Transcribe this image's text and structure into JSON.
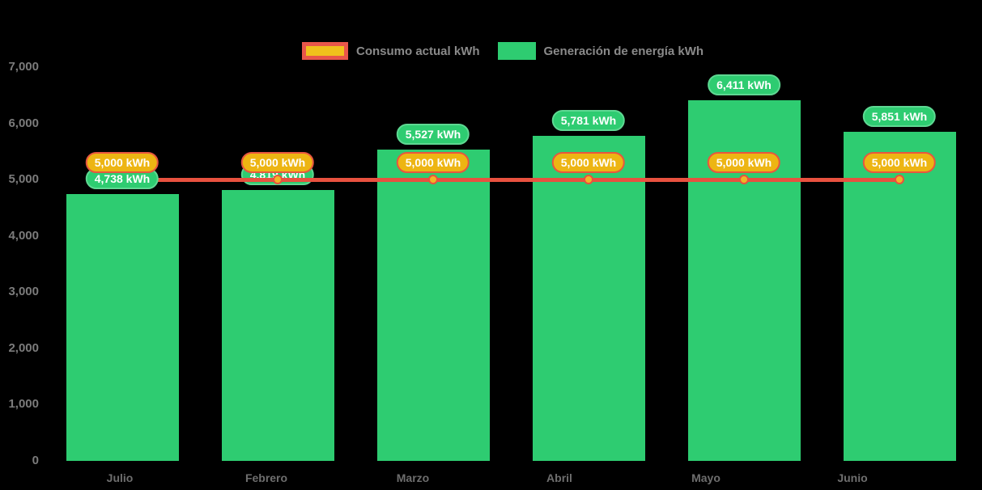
{
  "chart_data": {
    "type": "bar",
    "subtype": "bar-with-line-overlay",
    "categories": [
      "Julio",
      "Febrero",
      "Marzo",
      "Abril",
      "Mayo",
      "Junio"
    ],
    "series": [
      {
        "name": "Consumo actual kWh",
        "type": "line",
        "values": [
          5000,
          5000,
          5000,
          5000,
          5000,
          5000
        ],
        "labels": [
          "5,000 kWh",
          "5,000 kWh",
          "5,000 kWh",
          "5,000 kWh",
          "5,000 kWh",
          "5,000 kWh"
        ],
        "line_color": "#e8513f",
        "marker_color": "#f0b626",
        "label_bg": "#edb513",
        "label_border": "#e8563f"
      },
      {
        "name": "Generación de energía kWh",
        "type": "bar",
        "values": [
          4738,
          4819,
          5527,
          5781,
          6411,
          5851
        ],
        "labels": [
          "4,738 kWh",
          "4,819 kWh",
          "5,527 kWh",
          "5,781 kWh",
          "6,411 kWh",
          "5,851 kWh"
        ],
        "bar_color": "#2ecc71",
        "label_bg": "#2ecc71",
        "label_border": "#5ed892"
      }
    ],
    "title": "",
    "xlabel": "",
    "ylabel": "",
    "ylim": [
      0,
      7000
    ],
    "y_ticks": [
      "0",
      "1,000",
      "2,000",
      "3,000",
      "4,000",
      "5,000",
      "6,000",
      "7,000"
    ],
    "y_tick_step": 1000,
    "grid": false,
    "legend_position": "top",
    "background": "#000000",
    "axis_text_color": "#6e6e6e",
    "label_text_color": "#ffffff"
  }
}
